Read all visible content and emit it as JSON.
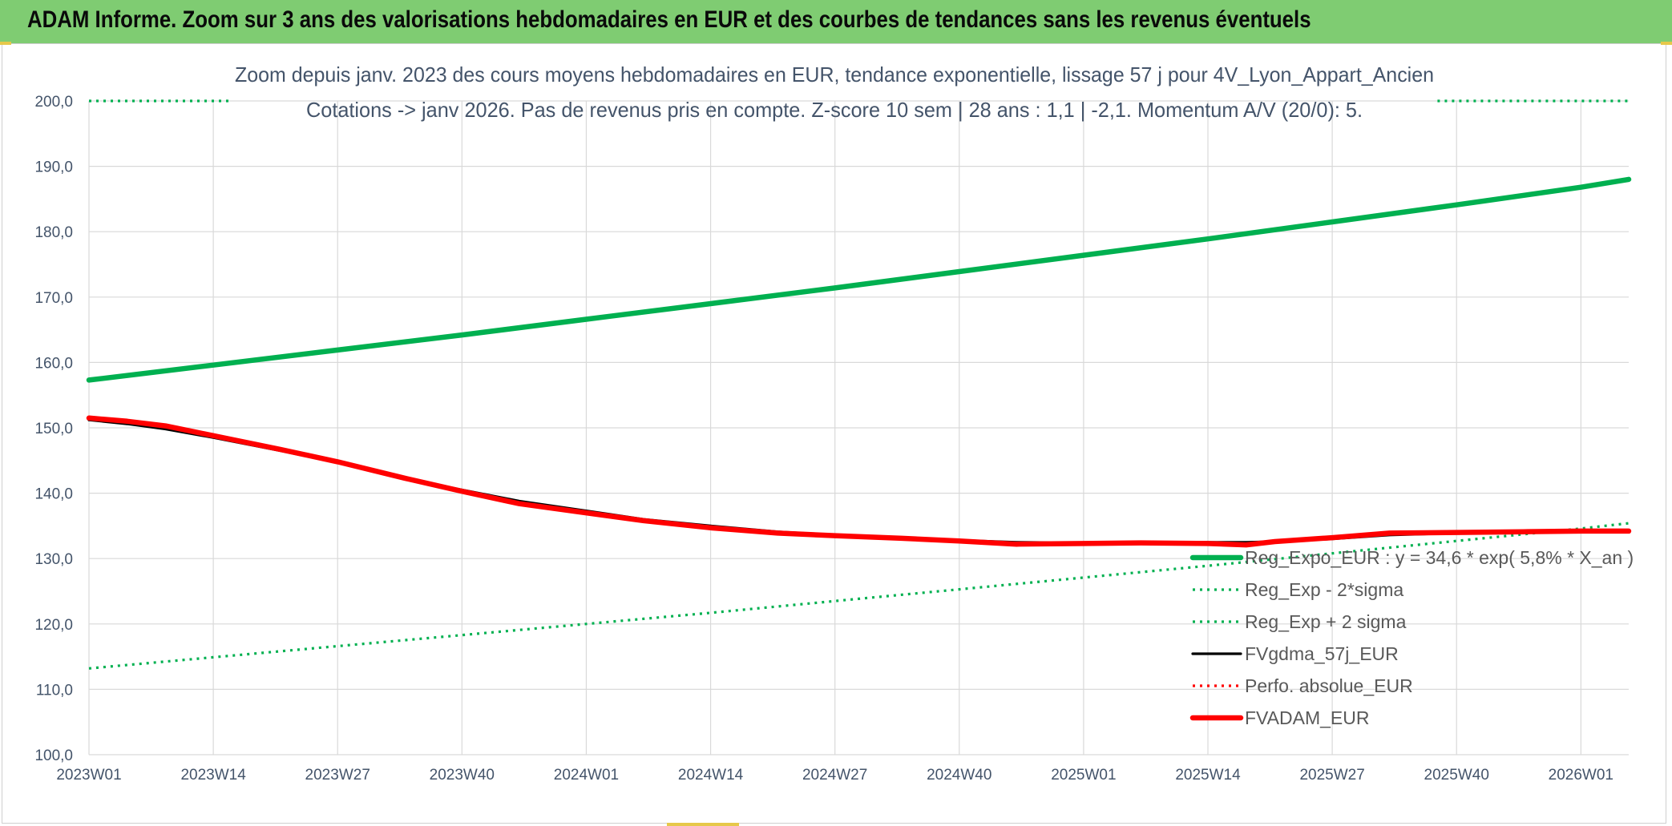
{
  "banner": {
    "title": "ADAM Informe. Zoom sur 3 ans des valorisations hebdomadaires en EUR et des courbes de tendances sans les revenus éventuels"
  },
  "colors": {
    "banner_bg": "#7fcc72",
    "trend": "#00b050",
    "fvgdma": "#000000",
    "adam": "#ff0000",
    "perfo": "#ff0000",
    "grid": "#d9d9d9",
    "title_text": "#44546a",
    "tick_text": "#44546a"
  },
  "chart_data": {
    "type": "line",
    "title_lines": [
      "Zoom depuis janv. 2023 des cours moyens hebdomadaires en EUR, tendance exponentielle, lissage 57 j pour 4V_Lyon_Appart_Ancien",
      "Cotations -> janv 2026. Pas de revenus pris en compte. Z-score 10 sem | 28 ans : 1,1 | -2,1. Momentum A/V (20/0): 5."
    ],
    "xlabel": "",
    "ylabel": "",
    "x_ticks": [
      "2023W01",
      "2023W14",
      "2023W27",
      "2023W40",
      "2024W01",
      "2024W14",
      "2024W27",
      "2024W40",
      "2025W01",
      "2025W14",
      "2025W27",
      "2025W40",
      "2026W01"
    ],
    "x_range": [
      0,
      161
    ],
    "ylim": [
      100,
      200
    ],
    "y_ticks": [
      "100,0",
      "110,0",
      "120,0",
      "130,0",
      "140,0",
      "150,0",
      "160,0",
      "170,0",
      "180,0",
      "190,0",
      "200,0"
    ],
    "grid": true,
    "legend_position": "bottom-right",
    "series": [
      {
        "name": "Reg_Expo_EUR : y = 34,6 * exp( 5,8% *  X_an )",
        "style": "solid-thick",
        "color": "#00b050",
        "x": [
          0,
          13,
          26,
          39,
          52,
          65,
          78,
          91,
          104,
          117,
          130,
          143,
          156,
          161
        ],
        "y": [
          157.3,
          159.6,
          161.9,
          164.2,
          166.6,
          169.0,
          171.4,
          173.9,
          176.4,
          178.9,
          181.5,
          184.1,
          186.8,
          188.0
        ]
      },
      {
        "name": "Reg_Exp - 2*sigma",
        "style": "dotted",
        "color": "#00b050",
        "x": [
          0,
          13,
          26,
          39,
          52,
          65,
          78,
          91,
          104,
          117,
          130,
          143,
          156,
          161
        ],
        "y": [
          113.2,
          114.9,
          116.6,
          118.3,
          120.0,
          121.7,
          123.5,
          125.3,
          127.1,
          128.9,
          130.8,
          132.7,
          134.6,
          135.4
        ]
      },
      {
        "name": "Reg_Exp + 2 sigma",
        "style": "dotted",
        "color": "#00b050",
        "x": [
          0,
          15
        ],
        "y": [
          200.0,
          200.0
        ],
        "x2": [
          141,
          161
        ],
        "y2": [
          200.0,
          200.0
        ]
      },
      {
        "name": "FVgdma_57j_EUR",
        "style": "solid",
        "color": "#000000",
        "x": [
          0,
          4,
          8,
          13,
          20,
          26,
          33,
          39,
          45,
          52,
          58,
          65,
          72,
          78,
          85,
          91,
          97,
          104,
          110,
          117,
          121,
          124,
          130,
          136,
          143,
          150,
          156,
          161
        ],
        "y": [
          151.2,
          150.6,
          149.8,
          148.5,
          146.5,
          144.7,
          142.3,
          140.5,
          138.8,
          137.3,
          136.0,
          135.0,
          134.1,
          133.6,
          133.2,
          132.8,
          132.5,
          132.4,
          132.4,
          132.5,
          132.5,
          132.6,
          133.0,
          133.6,
          133.9,
          134.0,
          134.1,
          134.2
        ]
      },
      {
        "name": "Perfo. absolue_EUR",
        "style": "dotted",
        "color": "#ff0000",
        "x": [],
        "y": []
      },
      {
        "name": "FVADAM_EUR",
        "style": "solid-thick",
        "color": "#ff0000",
        "x": [
          0,
          4,
          8,
          13,
          20,
          26,
          33,
          39,
          45,
          52,
          58,
          65,
          72,
          78,
          85,
          91,
          97,
          104,
          110,
          117,
          121,
          124,
          130,
          136,
          143,
          150,
          156,
          161
        ],
        "y": [
          151.5,
          151.0,
          150.3,
          148.8,
          146.7,
          144.8,
          142.3,
          140.3,
          138.4,
          137.0,
          135.8,
          134.7,
          133.9,
          133.5,
          133.1,
          132.7,
          132.2,
          132.3,
          132.4,
          132.3,
          132.1,
          132.6,
          133.2,
          133.9,
          134.0,
          134.1,
          134.2,
          134.2
        ]
      }
    ]
  }
}
